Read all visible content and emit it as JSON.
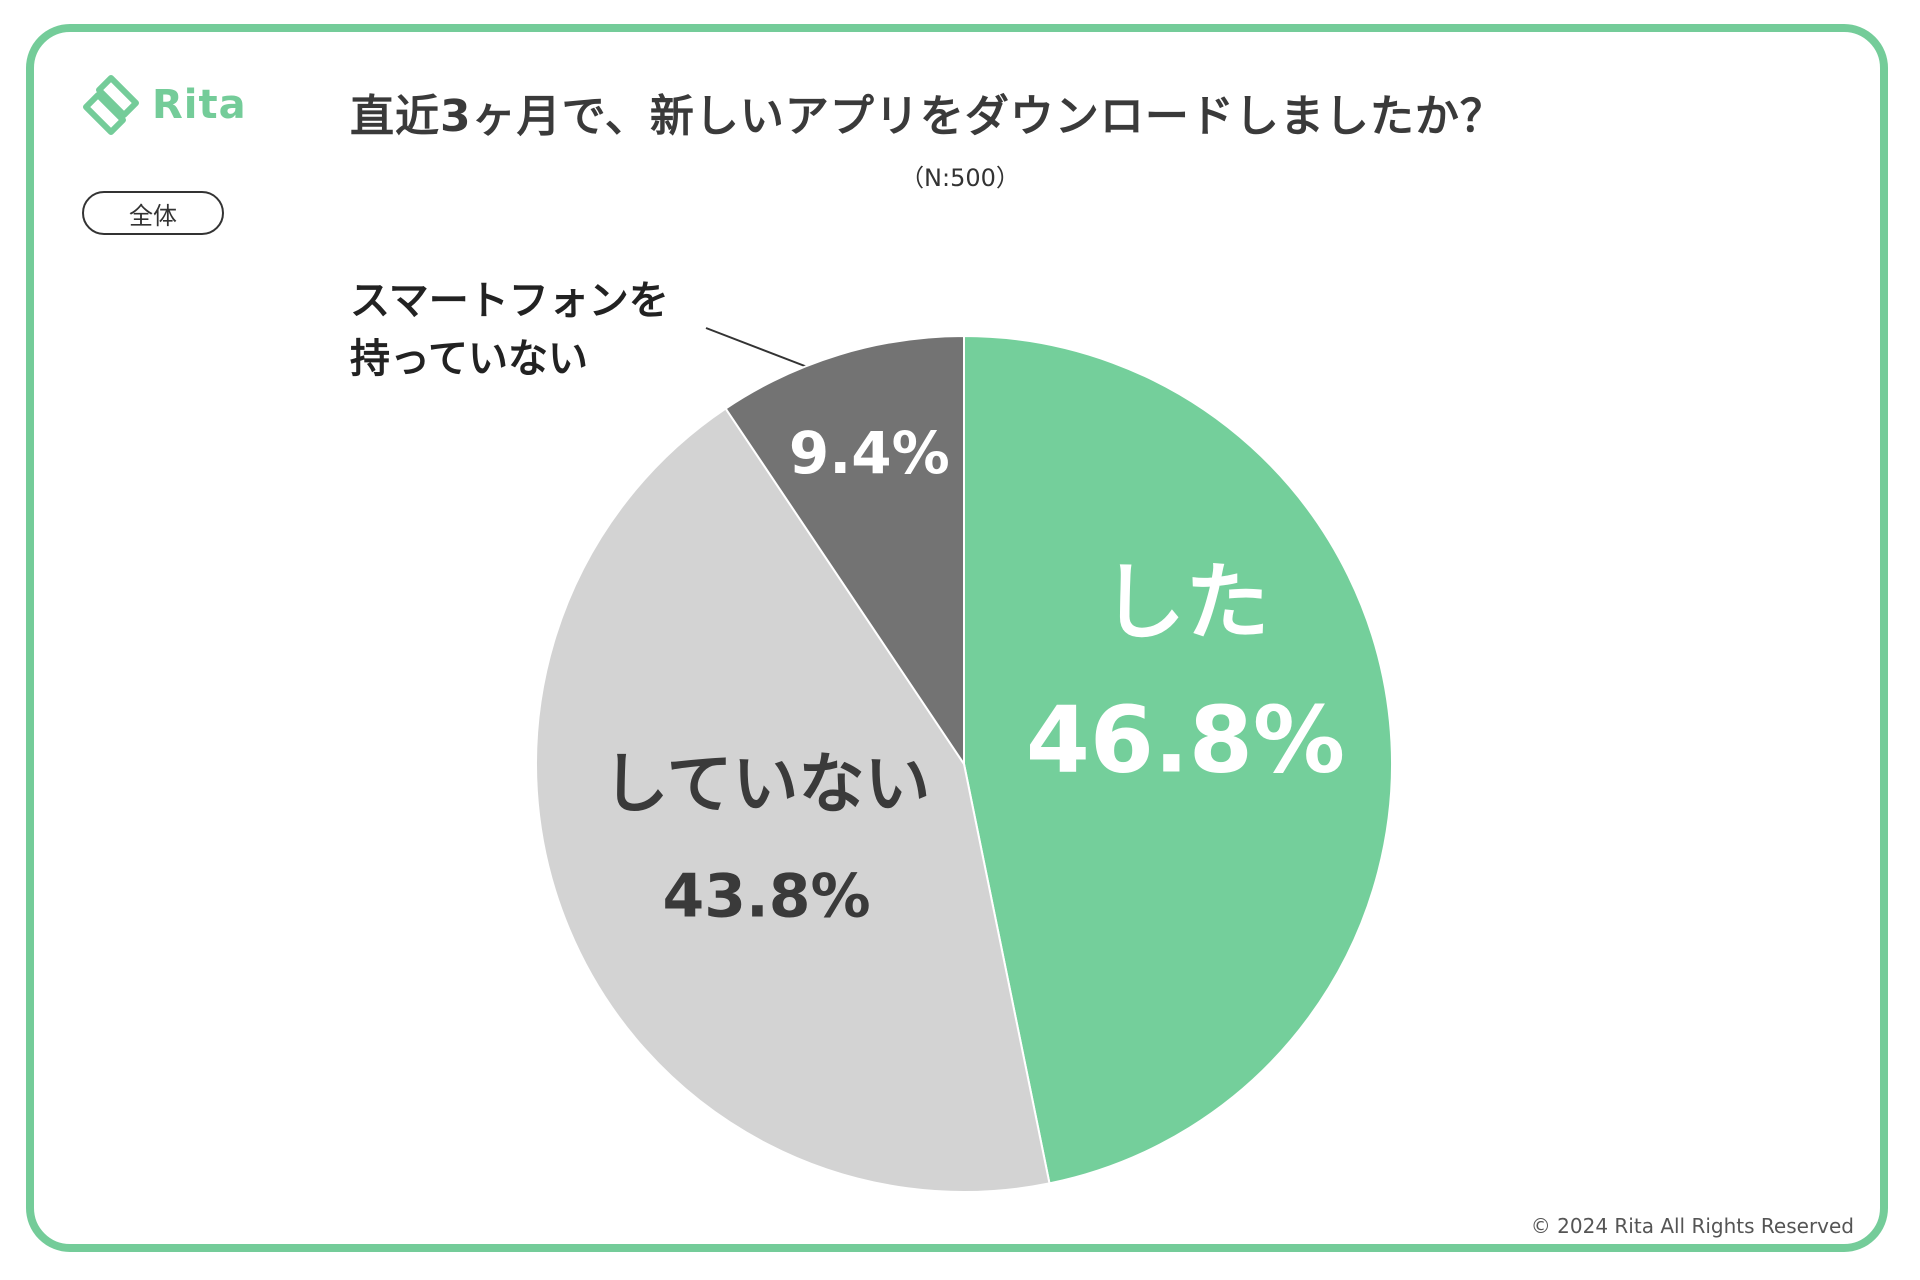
{
  "brand": {
    "name": "Rita"
  },
  "title": "直近3ヶ月で、新しいアプリをダウンロードしましたか？",
  "sample": "（N:500）",
  "segment_label": "全体",
  "copyright": "© 2024 Rita All Rights Reserved",
  "chart_data": {
    "type": "pie",
    "title": "直近3ヶ月で、新しいアプリをダウンロードしましたか？",
    "start": "12 o'clock, clockwise",
    "series": [
      {
        "name": "した",
        "value": 46.8,
        "label": "46.8%",
        "color": "#74cf9b",
        "text_color": "#ffffff"
      },
      {
        "name": "していない",
        "value": 43.8,
        "label": "43.8%",
        "color": "#d3d3d3",
        "text_color": "#3a3a3a"
      },
      {
        "name": "スマートフォンを持っていない",
        "value": 9.4,
        "label": "9.4%",
        "color": "#737373",
        "text_color": "#ffffff"
      }
    ]
  },
  "callout": {
    "line1": "スマートフォンを",
    "line2": "持っていない"
  }
}
